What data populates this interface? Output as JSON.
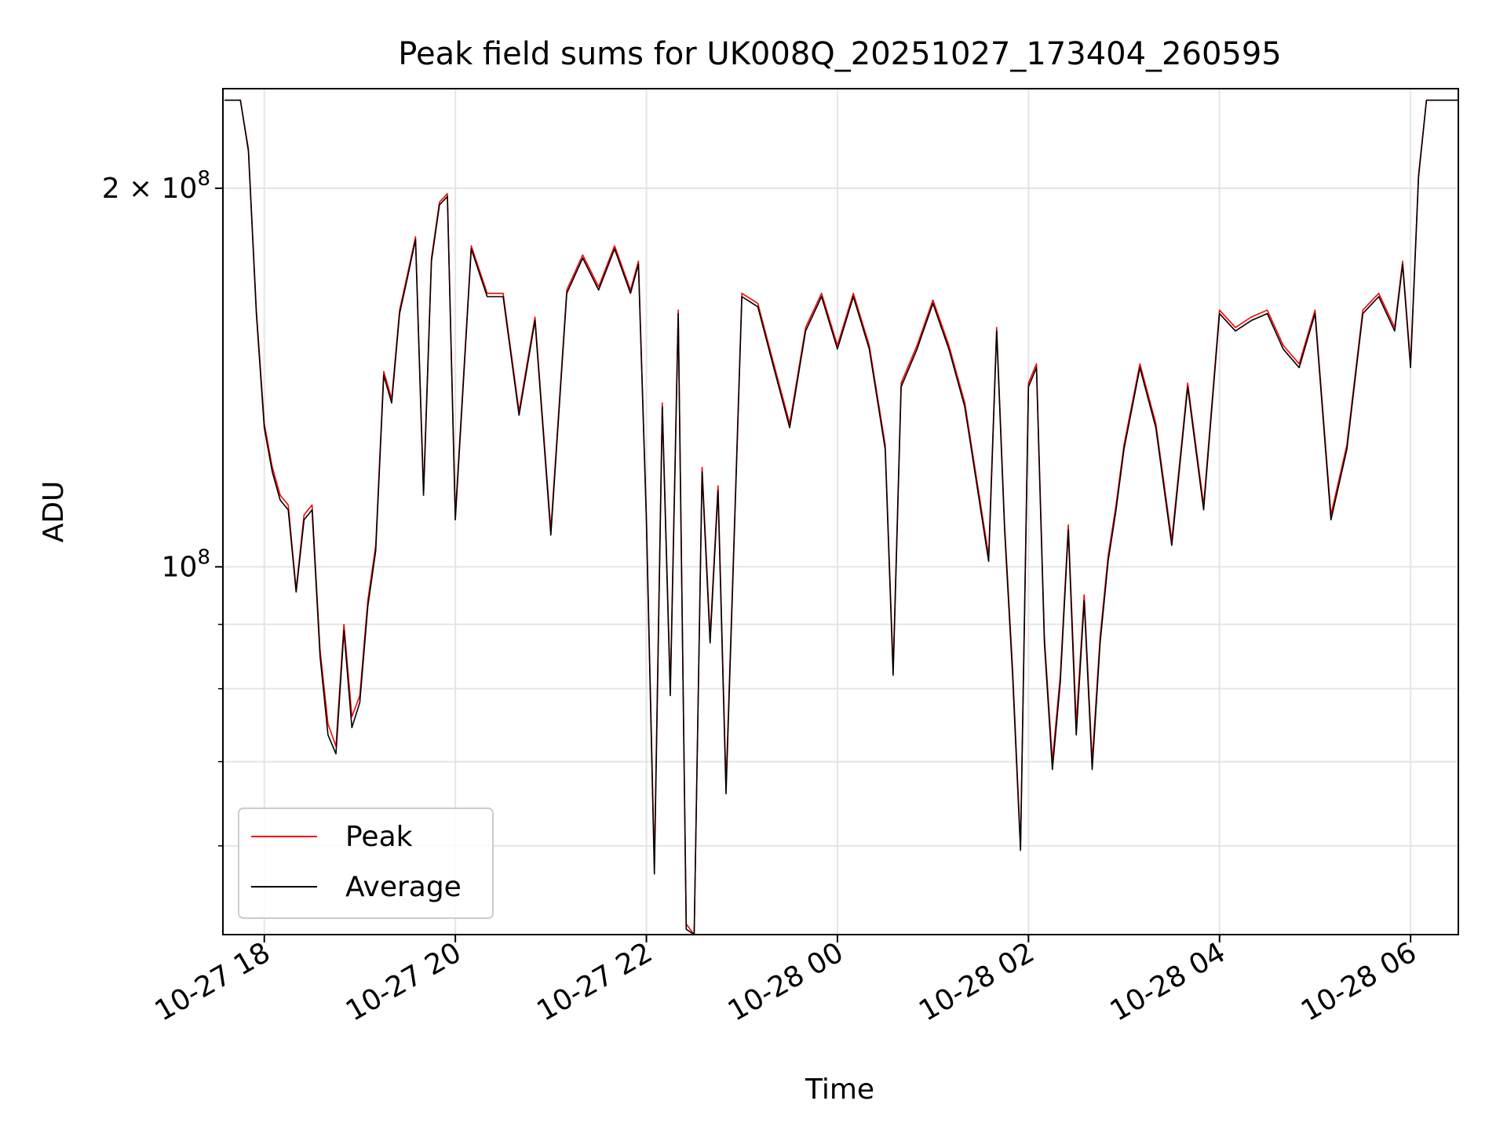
{
  "chart_data": {
    "type": "line",
    "title": "Peak field sums for UK008Q_20251027_173404_260595",
    "xlabel": "Time",
    "ylabel": "ADU",
    "y_scale": "log",
    "grid": true,
    "legend_position": "lower-left",
    "xlim": [
      "2025-10-27 17:34",
      "2025-10-28 06:30"
    ],
    "ylim": [
      51000000,
      240000000
    ],
    "x_ticks": [
      {
        "value": "2025-10-27 18:00",
        "label": "10-27 18"
      },
      {
        "value": "2025-10-27 20:00",
        "label": "10-27 20"
      },
      {
        "value": "2025-10-27 22:00",
        "label": "10-27 22"
      },
      {
        "value": "2025-10-28 00:00",
        "label": "10-28 00"
      },
      {
        "value": "2025-10-28 02:00",
        "label": "10-28 02"
      },
      {
        "value": "2025-10-28 04:00",
        "label": "10-28 04"
      },
      {
        "value": "2025-10-28 06:00",
        "label": "10-28 06"
      }
    ],
    "y_major_ticks": [
      {
        "value": 100000000,
        "label_base": "10",
        "label_exp": "8"
      },
      {
        "value": 200000000,
        "label_base": "2 × 10",
        "label_exp": "8"
      }
    ],
    "y_minor_ticks": [
      60000000,
      70000000,
      80000000,
      90000000
    ],
    "series": [
      {
        "name": "Peak",
        "color": "#ff0000",
        "x": [
          "2025-10-27 17:35",
          "2025-10-27 17:45",
          "2025-10-27 17:50",
          "2025-10-27 17:55",
          "2025-10-27 18:00",
          "2025-10-27 18:05",
          "2025-10-27 18:10",
          "2025-10-27 18:15",
          "2025-10-27 18:20",
          "2025-10-27 18:25",
          "2025-10-27 18:30",
          "2025-10-27 18:35",
          "2025-10-27 18:40",
          "2025-10-27 18:45",
          "2025-10-27 18:50",
          "2025-10-27 18:55",
          "2025-10-27 19:00",
          "2025-10-27 19:05",
          "2025-10-27 19:10",
          "2025-10-27 19:15",
          "2025-10-27 19:20",
          "2025-10-27 19:25",
          "2025-10-27 19:30",
          "2025-10-27 19:35",
          "2025-10-27 19:40",
          "2025-10-27 19:45",
          "2025-10-27 19:50",
          "2025-10-27 19:55",
          "2025-10-27 20:00",
          "2025-10-27 20:10",
          "2025-10-27 20:20",
          "2025-10-27 20:30",
          "2025-10-27 20:40",
          "2025-10-27 20:50",
          "2025-10-27 21:00",
          "2025-10-27 21:10",
          "2025-10-27 21:20",
          "2025-10-27 21:30",
          "2025-10-27 21:40",
          "2025-10-27 21:50",
          "2025-10-27 21:55",
          "2025-10-27 22:00",
          "2025-10-27 22:05",
          "2025-10-27 22:10",
          "2025-10-27 22:15",
          "2025-10-27 22:20",
          "2025-10-27 22:25",
          "2025-10-27 22:30",
          "2025-10-27 22:35",
          "2025-10-27 22:40",
          "2025-10-27 22:45",
          "2025-10-27 22:50",
          "2025-10-27 22:55",
          "2025-10-27 23:00",
          "2025-10-27 23:10",
          "2025-10-27 23:20",
          "2025-10-27 23:30",
          "2025-10-27 23:40",
          "2025-10-27 23:50",
          "2025-10-28 00:00",
          "2025-10-28 00:10",
          "2025-10-28 00:20",
          "2025-10-28 00:30",
          "2025-10-28 00:35",
          "2025-10-28 00:40",
          "2025-10-28 00:50",
          "2025-10-28 01:00",
          "2025-10-28 01:10",
          "2025-10-28 01:20",
          "2025-10-28 01:30",
          "2025-10-28 01:35",
          "2025-10-28 01:40",
          "2025-10-28 01:45",
          "2025-10-28 01:50",
          "2025-10-28 01:55",
          "2025-10-28 02:00",
          "2025-10-28 02:05",
          "2025-10-28 02:10",
          "2025-10-28 02:15",
          "2025-10-28 02:20",
          "2025-10-28 02:25",
          "2025-10-28 02:30",
          "2025-10-28 02:35",
          "2025-10-28 02:40",
          "2025-10-28 02:45",
          "2025-10-28 02:50",
          "2025-10-28 02:55",
          "2025-10-28 03:00",
          "2025-10-28 03:10",
          "2025-10-28 03:20",
          "2025-10-28 03:30",
          "2025-10-28 03:40",
          "2025-10-28 03:50",
          "2025-10-28 04:00",
          "2025-10-28 04:10",
          "2025-10-28 04:20",
          "2025-10-28 04:30",
          "2025-10-28 04:40",
          "2025-10-28 04:50",
          "2025-10-28 05:00",
          "2025-10-28 05:10",
          "2025-10-28 05:20",
          "2025-10-28 05:30",
          "2025-10-28 05:40",
          "2025-10-28 05:50",
          "2025-10-28 05:55",
          "2025-10-28 06:00",
          "2025-10-28 06:05",
          "2025-10-28 06:10",
          "2025-10-28 06:20",
          "2025-10-28 06:30"
        ],
        "y": [
          235000000,
          235000000,
          215000000,
          160000000,
          130000000,
          120000000,
          114000000,
          112000000,
          96000000,
          110000000,
          112000000,
          86000000,
          75000000,
          72000000,
          90000000,
          76000000,
          79000000,
          94000000,
          104000000,
          143000000,
          136000000,
          160000000,
          171000000,
          183000000,
          115000000,
          176000000,
          195000000,
          198000000,
          110000000,
          180000000,
          165000000,
          165000000,
          133000000,
          158000000,
          107000000,
          166000000,
          177000000,
          167000000,
          180000000,
          166000000,
          175000000,
          110000000,
          58000000,
          135000000,
          80000000,
          160000000,
          52000000,
          51000000,
          120000000,
          88000000,
          116000000,
          67000000,
          105000000,
          165000000,
          162000000,
          145000000,
          130000000,
          155000000,
          165000000,
          150000000,
          165000000,
          150000000,
          125000000,
          83000000,
          140000000,
          150000000,
          163000000,
          150000000,
          135000000,
          112000000,
          102000000,
          155000000,
          108000000,
          83000000,
          60000000,
          140000000,
          145000000,
          88000000,
          70000000,
          82000000,
          108000000,
          75000000,
          95000000,
          70000000,
          88000000,
          102000000,
          112000000,
          125000000,
          145000000,
          130000000,
          105000000,
          140000000,
          112000000,
          160000000,
          155000000,
          158000000,
          160000000,
          150000000,
          145000000,
          160000000,
          110000000,
          125000000,
          160000000,
          165000000,
          155000000,
          175000000,
          145000000,
          205000000,
          235000000,
          235000000,
          235000000
        ]
      },
      {
        "name": "Average",
        "color": "#000000",
        "x": [
          "2025-10-27 17:35",
          "2025-10-27 17:45",
          "2025-10-27 17:50",
          "2025-10-27 17:55",
          "2025-10-27 18:00",
          "2025-10-27 18:05",
          "2025-10-27 18:10",
          "2025-10-27 18:15",
          "2025-10-27 18:20",
          "2025-10-27 18:25",
          "2025-10-27 18:30",
          "2025-10-27 18:35",
          "2025-10-27 18:40",
          "2025-10-27 18:45",
          "2025-10-27 18:50",
          "2025-10-27 18:55",
          "2025-10-27 19:00",
          "2025-10-27 19:05",
          "2025-10-27 19:10",
          "2025-10-27 19:15",
          "2025-10-27 19:20",
          "2025-10-27 19:25",
          "2025-10-27 19:30",
          "2025-10-27 19:35",
          "2025-10-27 19:40",
          "2025-10-27 19:45",
          "2025-10-27 19:50",
          "2025-10-27 19:55",
          "2025-10-27 20:00",
          "2025-10-27 20:10",
          "2025-10-27 20:20",
          "2025-10-27 20:30",
          "2025-10-27 20:40",
          "2025-10-27 20:50",
          "2025-10-27 21:00",
          "2025-10-27 21:10",
          "2025-10-27 21:20",
          "2025-10-27 21:30",
          "2025-10-27 21:40",
          "2025-10-27 21:50",
          "2025-10-27 21:55",
          "2025-10-27 22:00",
          "2025-10-27 22:05",
          "2025-10-27 22:10",
          "2025-10-27 22:15",
          "2025-10-27 22:20",
          "2025-10-27 22:25",
          "2025-10-27 22:30",
          "2025-10-27 22:35",
          "2025-10-27 22:40",
          "2025-10-27 22:45",
          "2025-10-27 22:50",
          "2025-10-27 22:55",
          "2025-10-27 23:00",
          "2025-10-27 23:10",
          "2025-10-27 23:20",
          "2025-10-27 23:30",
          "2025-10-27 23:40",
          "2025-10-27 23:50",
          "2025-10-28 00:00",
          "2025-10-28 00:10",
          "2025-10-28 00:20",
          "2025-10-28 00:30",
          "2025-10-28 00:35",
          "2025-10-28 00:40",
          "2025-10-28 00:50",
          "2025-10-28 01:00",
          "2025-10-28 01:10",
          "2025-10-28 01:20",
          "2025-10-28 01:30",
          "2025-10-28 01:35",
          "2025-10-28 01:40",
          "2025-10-28 01:45",
          "2025-10-28 01:50",
          "2025-10-28 01:55",
          "2025-10-28 02:00",
          "2025-10-28 02:05",
          "2025-10-28 02:10",
          "2025-10-28 02:15",
          "2025-10-28 02:20",
          "2025-10-28 02:25",
          "2025-10-28 02:30",
          "2025-10-28 02:35",
          "2025-10-28 02:40",
          "2025-10-28 02:45",
          "2025-10-28 02:50",
          "2025-10-28 02:55",
          "2025-10-28 03:00",
          "2025-10-28 03:10",
          "2025-10-28 03:20",
          "2025-10-28 03:30",
          "2025-10-28 03:40",
          "2025-10-28 03:50",
          "2025-10-28 04:00",
          "2025-10-28 04:10",
          "2025-10-28 04:20",
          "2025-10-28 04:30",
          "2025-10-28 04:40",
          "2025-10-28 04:50",
          "2025-10-28 05:00",
          "2025-10-28 05:10",
          "2025-10-28 05:20",
          "2025-10-28 05:30",
          "2025-10-28 05:40",
          "2025-10-28 05:50",
          "2025-10-28 05:55",
          "2025-10-28 06:00",
          "2025-10-28 06:05",
          "2025-10-28 06:10",
          "2025-10-28 06:20",
          "2025-10-28 06:30"
        ],
        "y": [
          235000000,
          235000000,
          214000000,
          159000000,
          129000000,
          119000000,
          113000000,
          111000000,
          95500000,
          109000000,
          111000000,
          85000000,
          73500000,
          71000000,
          89000000,
          74500000,
          78000000,
          93000000,
          103000000,
          142000000,
          135000000,
          159000000,
          170000000,
          182000000,
          114000000,
          175000000,
          194000000,
          197000000,
          109000000,
          179000000,
          164000000,
          164000000,
          132000000,
          157000000,
          106000000,
          165000000,
          176000000,
          166000000,
          179000000,
          165000000,
          174000000,
          109000000,
          57000000,
          134000000,
          79000000,
          159000000,
          51500000,
          51000000,
          119000000,
          87000000,
          115000000,
          66000000,
          104000000,
          164000000,
          161000000,
          144000000,
          129000000,
          154000000,
          164000000,
          149000000,
          164000000,
          149000000,
          124000000,
          82000000,
          139000000,
          149000000,
          162000000,
          149000000,
          134000000,
          111000000,
          101000000,
          154000000,
          107000000,
          82000000,
          59500000,
          139000000,
          144000000,
          87000000,
          69000000,
          81000000,
          107000000,
          73500000,
          94000000,
          69000000,
          87000000,
          101000000,
          111000000,
          124000000,
          144000000,
          129000000,
          104000000,
          139000000,
          111000000,
          159000000,
          154000000,
          157000000,
          159000000,
          149000000,
          144000000,
          159000000,
          109000000,
          124000000,
          159000000,
          164000000,
          154000000,
          174000000,
          144000000,
          204000000,
          235000000,
          235000000,
          235000000
        ]
      }
    ]
  }
}
